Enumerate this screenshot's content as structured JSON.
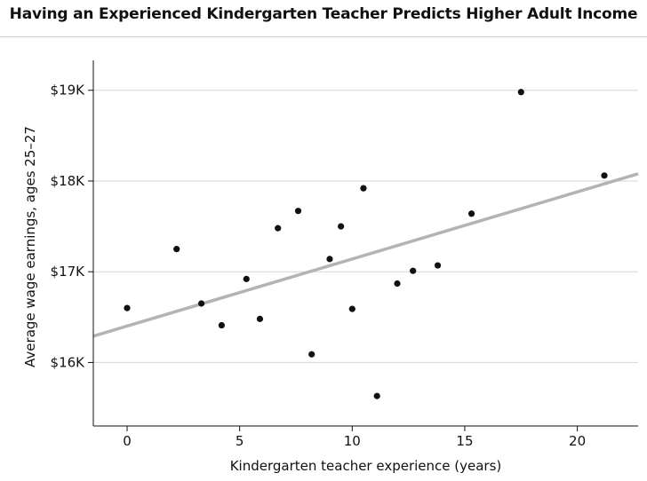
{
  "chart_data": {
    "type": "scatter",
    "title": "Having an Experienced Kindergarten Teacher Predicts Higher Adult Income",
    "xlabel": "Kindergarten teacher experience (years)",
    "ylabel": "Average wage earnings, ages 25–27",
    "xlim": [
      -1.5,
      22.7
    ],
    "ylim": [
      15300,
      19330
    ],
    "x_ticks": [
      0,
      5,
      10,
      15,
      20
    ],
    "x_tick_labels": [
      "0",
      "5",
      "10",
      "15",
      "20"
    ],
    "y_ticks": [
      16000,
      17000,
      18000,
      19000
    ],
    "y_tick_labels": [
      "$16K",
      "$17K",
      "$18K",
      "$19K"
    ],
    "grid": "horizontal",
    "colors": {
      "points": "#111111",
      "trend": "#b3b3b3",
      "grid": "#d6d6d6",
      "axis": "#111111"
    },
    "points": [
      {
        "x": 0.0,
        "y": 16600
      },
      {
        "x": 2.2,
        "y": 17250
      },
      {
        "x": 3.3,
        "y": 16650
      },
      {
        "x": 4.2,
        "y": 16410
      },
      {
        "x": 5.3,
        "y": 16920
      },
      {
        "x": 5.9,
        "y": 16480
      },
      {
        "x": 6.7,
        "y": 17480
      },
      {
        "x": 7.6,
        "y": 17670
      },
      {
        "x": 8.2,
        "y": 16090
      },
      {
        "x": 9.0,
        "y": 17140
      },
      {
        "x": 9.5,
        "y": 17500
      },
      {
        "x": 10.0,
        "y": 16590
      },
      {
        "x": 10.5,
        "y": 17920
      },
      {
        "x": 11.1,
        "y": 15630
      },
      {
        "x": 12.0,
        "y": 16870
      },
      {
        "x": 12.7,
        "y": 17010
      },
      {
        "x": 13.8,
        "y": 17070
      },
      {
        "x": 15.3,
        "y": 17640
      },
      {
        "x": 17.5,
        "y": 18980
      },
      {
        "x": 21.2,
        "y": 18060
      }
    ],
    "trendline": {
      "x": [
        -1.5,
        22.7
      ],
      "y": [
        16290,
        18080
      ]
    }
  }
}
